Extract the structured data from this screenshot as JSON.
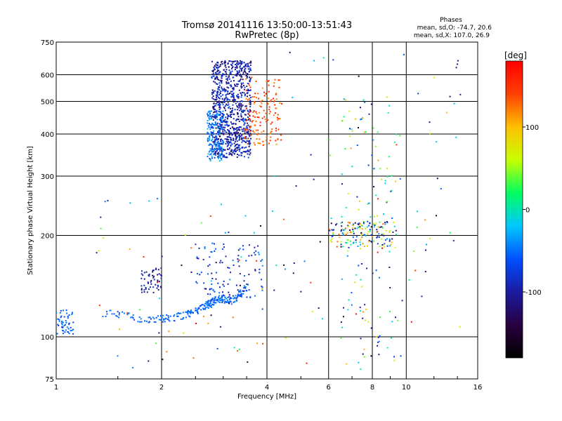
{
  "chart_data": {
    "type": "scatter",
    "title": "Tromsø 20141116 13:50:00-13:51:43",
    "subtitle": "RwPretec (8p)",
    "xlabel": "Frequency [MHz]",
    "ylabel": "Stationary phase Virtual Height [km]",
    "x_scale": "log",
    "y_scale": "log",
    "xlim": [
      1,
      16
    ],
    "ylim": [
      75,
      750
    ],
    "x_ticks": [
      {
        "value": 1,
        "label": "1"
      },
      {
        "value": 2,
        "label": "2"
      },
      {
        "value": 4,
        "label": "4"
      },
      {
        "value": 6,
        "label": "6"
      },
      {
        "value": 8,
        "label": "8"
      },
      {
        "value": 10,
        "label": "10"
      },
      {
        "value": 16,
        "label": "16"
      }
    ],
    "y_ticks": [
      {
        "value": 75,
        "label": "75"
      },
      {
        "value": 100,
        "label": "100"
      },
      {
        "value": 200,
        "label": "200"
      },
      {
        "value": 300,
        "label": "300"
      },
      {
        "value": 400,
        "label": "400"
      },
      {
        "value": 500,
        "label": "500"
      },
      {
        "value": 600,
        "label": "600"
      },
      {
        "value": 750,
        "label": "750"
      }
    ],
    "grid": true,
    "legend": {
      "title": "Phases",
      "line1": "mean, sd,O: -74.7, 20.6",
      "line2": "mean, sd,X: 107.0, 26.9"
    },
    "colorbar": {
      "label": "[deg]",
      "range": [
        -180,
        180
      ],
      "ticks": [
        {
          "value": 100,
          "label": "100"
        },
        {
          "value": 0,
          "label": "0"
        },
        {
          "value": -100,
          "label": "-100"
        }
      ],
      "colors": [
        "#000000",
        "#2a0040",
        "#1a1aa0",
        "#0050ff",
        "#00c8ff",
        "#00ff60",
        "#c8ff00",
        "#ffc000",
        "#ff4000",
        "#ff0000"
      ]
    },
    "series": [
      {
        "kind": "cluster",
        "x": [
          2.78,
          3.6
        ],
        "y": [
          340,
          660
        ],
        "phase": [
          -130,
          -60
        ],
        "n": 900
      },
      {
        "kind": "cluster",
        "x": [
          2.7,
          3.0
        ],
        "y": [
          330,
          470
        ],
        "phase": [
          -70,
          -20
        ],
        "n": 160
      },
      {
        "kind": "cluster",
        "x": [
          3.45,
          4.4
        ],
        "y": [
          370,
          590
        ],
        "phase": [
          110,
          170
        ],
        "n": 150
      },
      {
        "kind": "trace",
        "x": [
          1.35,
          1.9,
          2.35,
          2.7,
          2.9,
          3.2,
          3.5
        ],
        "y": [
          118,
          112,
          116,
          124,
          130,
          128,
          140
        ],
        "phase": [
          -70,
          -40
        ],
        "n": 260
      },
      {
        "kind": "cluster",
        "x": [
          1.0,
          1.12
        ],
        "y": [
          100,
          120
        ],
        "phase": [
          -70,
          -40
        ],
        "n": 55
      },
      {
        "kind": "cluster",
        "x": [
          1.75,
          2.0
        ],
        "y": [
          135,
          160
        ],
        "phase": [
          -120,
          -80
        ],
        "n": 55
      },
      {
        "kind": "cluster",
        "x": [
          2.5,
          3.9
        ],
        "y": [
          130,
          190
        ],
        "phase": [
          -110,
          -40
        ],
        "n": 110
      },
      {
        "kind": "cluster",
        "x": [
          6.0,
          9.4
        ],
        "y": [
          185,
          220
        ],
        "phase": [
          -140,
          140
        ],
        "n": 150
      },
      {
        "kind": "cluster",
        "x": [
          6.5,
          9.4
        ],
        "y": [
          80,
          520
        ],
        "phase": [
          -130,
          120
        ],
        "n": 120
      },
      {
        "kind": "scatter",
        "x": [
          1.3,
          4.6
        ],
        "y": [
          80,
          270
        ],
        "phase": [
          -180,
          180
        ],
        "n": 70
      },
      {
        "kind": "scatter",
        "x": [
          4.0,
          14.5
        ],
        "y": [
          80,
          700
        ],
        "phase": [
          -180,
          180
        ],
        "n": 90
      },
      {
        "kind": "points",
        "x": [
          13.9,
          14.0,
          14.05
        ],
        "y": [
          630,
          645,
          660
        ],
        "phase": [
          -110,
          -110
        ]
      }
    ]
  }
}
